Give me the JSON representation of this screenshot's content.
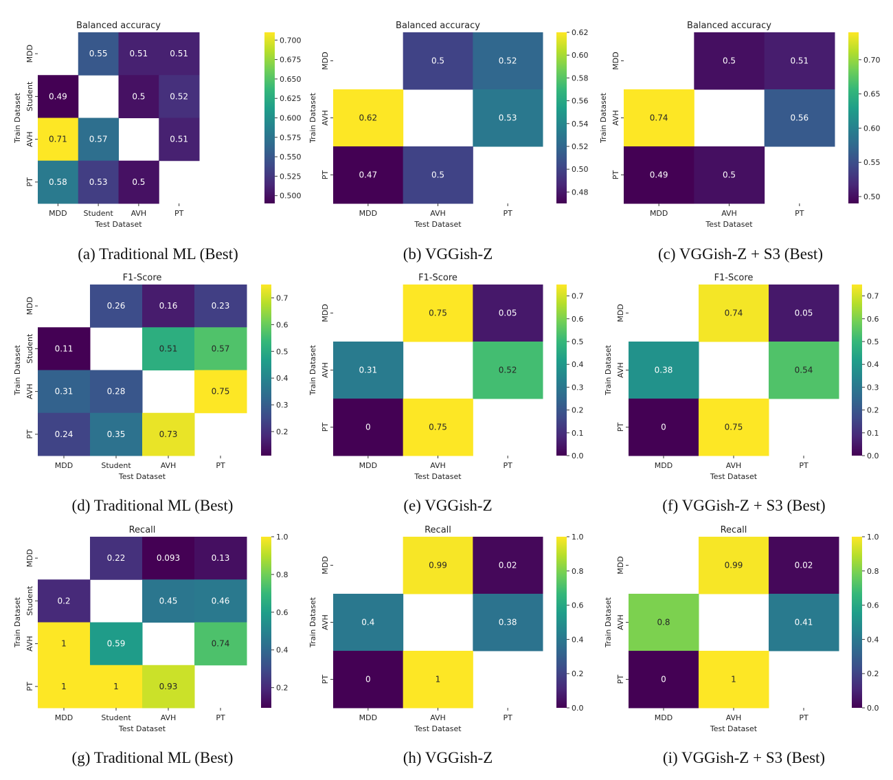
{
  "figure": {
    "panels": [
      {
        "id": "a",
        "caption": "(a) Traditional ML (Best)"
      },
      {
        "id": "b",
        "caption": "(b) VGGish-Z"
      },
      {
        "id": "c",
        "caption": "(c) VGGish-Z + S3 (Best)"
      },
      {
        "id": "d",
        "caption": "(d) Traditional ML (Best)"
      },
      {
        "id": "e",
        "caption": "(e) VGGish-Z"
      },
      {
        "id": "f",
        "caption": "(f) VGGish-Z + S3 (Best)"
      },
      {
        "id": "g",
        "caption": "(g) Traditional ML (Best)"
      },
      {
        "id": "h",
        "caption": "(h) VGGish-Z"
      },
      {
        "id": "i",
        "caption": "(i) VGGish-Z + S3 (Best)"
      }
    ]
  },
  "chart_data": [
    {
      "id": "a",
      "type": "heatmap",
      "title": "Balanced accuracy",
      "xlabel": "Test Dataset",
      "ylabel": "Train Dataset",
      "x_categories": [
        "MDD",
        "Student",
        "AVH",
        "PT"
      ],
      "y_categories": [
        "MDD",
        "Student",
        "AVH",
        "PT"
      ],
      "values": [
        [
          null,
          0.55,
          0.51,
          0.51
        ],
        [
          0.49,
          null,
          0.5,
          0.52
        ],
        [
          0.71,
          0.57,
          null,
          0.51
        ],
        [
          0.58,
          0.53,
          0.5,
          null
        ]
      ],
      "labels": [
        [
          "",
          "0.55",
          "0.51",
          "0.51"
        ],
        [
          "0.49",
          "",
          "0.5",
          "0.52"
        ],
        [
          "0.71",
          "0.57",
          "",
          "0.51"
        ],
        [
          "0.58",
          "0.53",
          "0.5",
          ""
        ]
      ],
      "colorbar": {
        "min": 0.49,
        "max": 0.71,
        "ticks": [
          "0.500",
          "0.525",
          "0.550",
          "0.575",
          "0.600",
          "0.625",
          "0.650",
          "0.675",
          "0.700"
        ]
      }
    },
    {
      "id": "b",
      "type": "heatmap",
      "title": "Balanced accuracy",
      "xlabel": "Test Dataset",
      "ylabel": "Train Dataset",
      "x_categories": [
        "MDD",
        "AVH",
        "PT"
      ],
      "y_categories": [
        "MDD",
        "AVH",
        "PT"
      ],
      "values": [
        [
          null,
          0.5,
          0.52
        ],
        [
          0.62,
          null,
          0.53
        ],
        [
          0.47,
          0.5,
          null
        ]
      ],
      "labels": [
        [
          "",
          "0.5",
          "0.52"
        ],
        [
          "0.62",
          "",
          "0.53"
        ],
        [
          "0.47",
          "0.5",
          ""
        ]
      ],
      "colorbar": {
        "min": 0.47,
        "max": 0.62,
        "ticks": [
          "0.48",
          "0.50",
          "0.52",
          "0.54",
          "0.56",
          "0.58",
          "0.60",
          "0.62"
        ]
      }
    },
    {
      "id": "c",
      "type": "heatmap",
      "title": "Balanced accuracy",
      "xlabel": "Test Dataset",
      "ylabel": "Train Dataset",
      "x_categories": [
        "MDD",
        "AVH",
        "PT"
      ],
      "y_categories": [
        "MDD",
        "AVH",
        "PT"
      ],
      "values": [
        [
          null,
          0.5,
          0.51
        ],
        [
          0.74,
          null,
          0.56
        ],
        [
          0.49,
          0.5,
          null
        ]
      ],
      "labels": [
        [
          "",
          "0.5",
          "0.51"
        ],
        [
          "0.74",
          "",
          "0.56"
        ],
        [
          "0.49",
          "0.5",
          ""
        ]
      ],
      "colorbar": {
        "min": 0.49,
        "max": 0.74,
        "ticks": [
          "0.50",
          "0.55",
          "0.60",
          "0.65",
          "0.70"
        ]
      }
    },
    {
      "id": "d",
      "type": "heatmap",
      "title": "F1-Score",
      "xlabel": "Test Dataset",
      "ylabel": "Train Dataset",
      "x_categories": [
        "MDD",
        "Student",
        "AVH",
        "PT"
      ],
      "y_categories": [
        "MDD",
        "Student",
        "AVH",
        "PT"
      ],
      "values": [
        [
          null,
          0.26,
          0.16,
          0.23
        ],
        [
          0.11,
          null,
          0.51,
          0.57
        ],
        [
          0.31,
          0.28,
          null,
          0.75
        ],
        [
          0.24,
          0.35,
          0.73,
          null
        ]
      ],
      "labels": [
        [
          "",
          "0.26",
          "0.16",
          "0.23"
        ],
        [
          "0.11",
          "",
          "0.51",
          "0.57"
        ],
        [
          "0.31",
          "0.28",
          "",
          "0.75"
        ],
        [
          "0.24",
          "0.35",
          "0.73",
          ""
        ]
      ],
      "colorbar": {
        "min": 0.11,
        "max": 0.75,
        "ticks": [
          "0.2",
          "0.3",
          "0.4",
          "0.5",
          "0.6",
          "0.7"
        ]
      }
    },
    {
      "id": "e",
      "type": "heatmap",
      "title": "F1-Score",
      "xlabel": "Test Dataset",
      "ylabel": "Train Dataset",
      "x_categories": [
        "MDD",
        "AVH",
        "PT"
      ],
      "y_categories": [
        "MDD",
        "AVH",
        "PT"
      ],
      "values": [
        [
          null,
          0.75,
          0.05
        ],
        [
          0.31,
          null,
          0.52
        ],
        [
          0,
          0.75,
          null
        ]
      ],
      "labels": [
        [
          "",
          "0.75",
          "0.05"
        ],
        [
          "0.31",
          "",
          "0.52"
        ],
        [
          "0",
          "0.75",
          ""
        ]
      ],
      "colorbar": {
        "min": 0,
        "max": 0.75,
        "ticks": [
          "0.0",
          "0.1",
          "0.2",
          "0.3",
          "0.4",
          "0.5",
          "0.6",
          "0.7"
        ]
      }
    },
    {
      "id": "f",
      "type": "heatmap",
      "title": "F1-Score",
      "xlabel": "Test Dataset",
      "ylabel": "Train Dataset",
      "x_categories": [
        "MDD",
        "AVH",
        "PT"
      ],
      "y_categories": [
        "MDD",
        "AVH",
        "PT"
      ],
      "values": [
        [
          null,
          0.74,
          0.05
        ],
        [
          0.38,
          null,
          0.54
        ],
        [
          0,
          0.75,
          null
        ]
      ],
      "labels": [
        [
          "",
          "0.74",
          "0.05"
        ],
        [
          "0.38",
          "",
          "0.54"
        ],
        [
          "0",
          "0.75",
          ""
        ]
      ],
      "colorbar": {
        "min": 0,
        "max": 0.75,
        "ticks": [
          "0.0",
          "0.1",
          "0.2",
          "0.3",
          "0.4",
          "0.5",
          "0.6",
          "0.7"
        ]
      }
    },
    {
      "id": "g",
      "type": "heatmap",
      "title": "Recall",
      "xlabel": "Test Dataset",
      "ylabel": "Train Dataset",
      "x_categories": [
        "MDD",
        "Student",
        "AVH",
        "PT"
      ],
      "y_categories": [
        "MDD",
        "Student",
        "AVH",
        "PT"
      ],
      "values": [
        [
          null,
          0.22,
          0.093,
          0.13
        ],
        [
          0.2,
          null,
          0.45,
          0.46
        ],
        [
          1,
          0.59,
          null,
          0.74
        ],
        [
          1,
          1,
          0.93,
          null
        ]
      ],
      "labels": [
        [
          "",
          "0.22",
          "0.093",
          "0.13"
        ],
        [
          "0.2",
          "",
          "0.45",
          "0.46"
        ],
        [
          "1",
          "0.59",
          "",
          "0.74"
        ],
        [
          "1",
          "1",
          "0.93",
          ""
        ]
      ],
      "colorbar": {
        "min": 0.093,
        "max": 1,
        "ticks": [
          "0.2",
          "0.4",
          "0.6",
          "0.8",
          "1.0"
        ]
      }
    },
    {
      "id": "h",
      "type": "heatmap",
      "title": "Recall",
      "xlabel": "Test Dataset",
      "ylabel": "Train Dataset",
      "x_categories": [
        "MDD",
        "AVH",
        "PT"
      ],
      "y_categories": [
        "MDD",
        "AVH",
        "PT"
      ],
      "values": [
        [
          null,
          0.99,
          0.02
        ],
        [
          0.4,
          null,
          0.38
        ],
        [
          0,
          1,
          null
        ]
      ],
      "labels": [
        [
          "",
          "0.99",
          "0.02"
        ],
        [
          "0.4",
          "",
          "0.38"
        ],
        [
          "0",
          "1",
          ""
        ]
      ],
      "colorbar": {
        "min": 0,
        "max": 1,
        "ticks": [
          "0.0",
          "0.2",
          "0.4",
          "0.6",
          "0.8",
          "1.0"
        ]
      }
    },
    {
      "id": "i",
      "type": "heatmap",
      "title": "Recall",
      "xlabel": "Test Dataset",
      "ylabel": "Train Dataset",
      "x_categories": [
        "MDD",
        "AVH",
        "PT"
      ],
      "y_categories": [
        "MDD",
        "AVH",
        "PT"
      ],
      "values": [
        [
          null,
          0.99,
          0.02
        ],
        [
          0.8,
          null,
          0.41
        ],
        [
          0,
          1,
          null
        ]
      ],
      "labels": [
        [
          "",
          "0.99",
          "0.02"
        ],
        [
          "0.8",
          "",
          "0.41"
        ],
        [
          "0",
          "1",
          ""
        ]
      ],
      "colorbar": {
        "min": 0,
        "max": 1,
        "ticks": [
          "0.0",
          "0.2",
          "0.4",
          "0.6",
          "0.8",
          "1.0"
        ]
      }
    }
  ]
}
